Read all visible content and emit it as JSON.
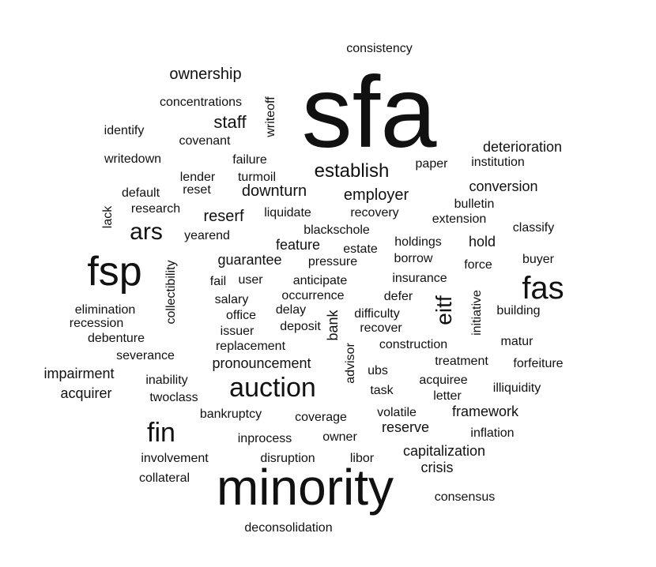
{
  "words": [
    {
      "text": "sfa"
    },
    {
      "text": "minority"
    },
    {
      "text": "fsp"
    },
    {
      "text": "fas"
    },
    {
      "text": "auction"
    },
    {
      "text": "fin"
    },
    {
      "text": "ars"
    },
    {
      "text": "eitf"
    },
    {
      "text": "establish"
    },
    {
      "text": "staff"
    },
    {
      "text": "ownership"
    },
    {
      "text": "consistency"
    },
    {
      "text": "concentrations"
    },
    {
      "text": "writeoff"
    },
    {
      "text": "identify"
    },
    {
      "text": "covenant"
    },
    {
      "text": "writedown"
    },
    {
      "text": "failure"
    },
    {
      "text": "lender"
    },
    {
      "text": "turmoil"
    },
    {
      "text": "reset"
    },
    {
      "text": "default"
    },
    {
      "text": "research"
    },
    {
      "text": "lack"
    },
    {
      "text": "downturn"
    },
    {
      "text": "employer"
    },
    {
      "text": "paper"
    },
    {
      "text": "deterioration"
    },
    {
      "text": "institution"
    },
    {
      "text": "conversion"
    },
    {
      "text": "bulletin"
    },
    {
      "text": "extension"
    },
    {
      "text": "reserf"
    },
    {
      "text": "liquidate"
    },
    {
      "text": "recovery"
    },
    {
      "text": "yearend"
    },
    {
      "text": "blackschole"
    },
    {
      "text": "classify"
    },
    {
      "text": "holdings"
    },
    {
      "text": "hold"
    },
    {
      "text": "feature"
    },
    {
      "text": "estate"
    },
    {
      "text": "borrow"
    },
    {
      "text": "buyer"
    },
    {
      "text": "guarantee"
    },
    {
      "text": "pressure"
    },
    {
      "text": "force"
    },
    {
      "text": "collectibility"
    },
    {
      "text": "fail"
    },
    {
      "text": "user"
    },
    {
      "text": "anticipate"
    },
    {
      "text": "insurance"
    },
    {
      "text": "occurrence"
    },
    {
      "text": "defer"
    },
    {
      "text": "salary"
    },
    {
      "text": "elimination"
    },
    {
      "text": "delay"
    },
    {
      "text": "bank"
    },
    {
      "text": "difficulty"
    },
    {
      "text": "building"
    },
    {
      "text": "initiative"
    },
    {
      "text": "recession"
    },
    {
      "text": "office"
    },
    {
      "text": "deposit"
    },
    {
      "text": "recover"
    },
    {
      "text": "debenture"
    },
    {
      "text": "issuer"
    },
    {
      "text": "matur"
    },
    {
      "text": "replacement"
    },
    {
      "text": "construction"
    },
    {
      "text": "severance"
    },
    {
      "text": "advisor"
    },
    {
      "text": "pronouncement"
    },
    {
      "text": "treatment"
    },
    {
      "text": "forfeiture"
    },
    {
      "text": "impairment"
    },
    {
      "text": "ubs"
    },
    {
      "text": "inability"
    },
    {
      "text": "acquiree"
    },
    {
      "text": "acquirer"
    },
    {
      "text": "task"
    },
    {
      "text": "illiquidity"
    },
    {
      "text": "twoclass"
    },
    {
      "text": "letter"
    },
    {
      "text": "bankruptcy"
    },
    {
      "text": "volatile"
    },
    {
      "text": "framework"
    },
    {
      "text": "coverage"
    },
    {
      "text": "reserve"
    },
    {
      "text": "inflation"
    },
    {
      "text": "inprocess"
    },
    {
      "text": "owner"
    },
    {
      "text": "capitalization"
    },
    {
      "text": "involvement"
    },
    {
      "text": "disruption"
    },
    {
      "text": "libor"
    },
    {
      "text": "crisis"
    },
    {
      "text": "collateral"
    },
    {
      "text": "consensus"
    },
    {
      "text": "deconsolidation"
    }
  ]
}
